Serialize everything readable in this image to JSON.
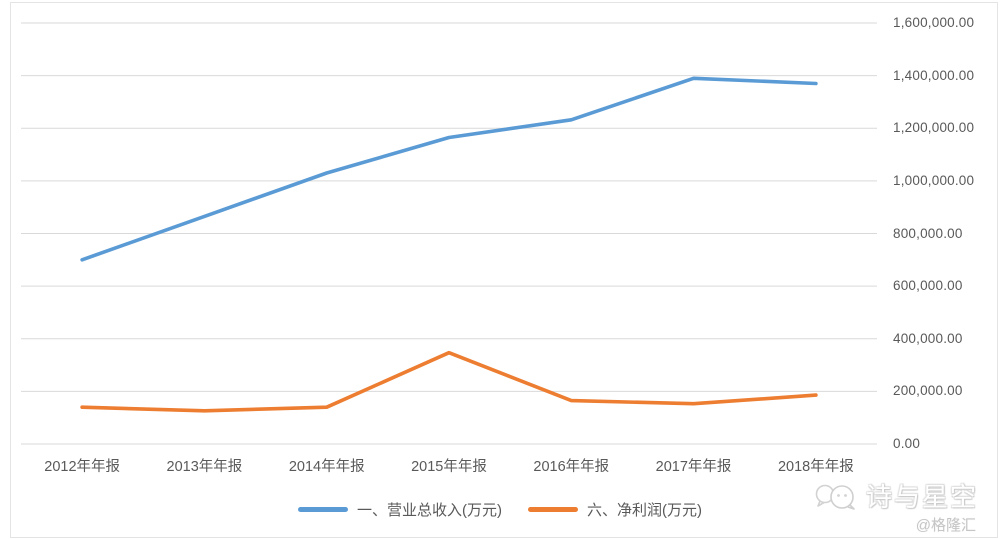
{
  "chart_data": {
    "type": "line",
    "title": "",
    "categories": [
      "2012年年报",
      "2013年年报",
      "2014年年报",
      "2015年年报",
      "2016年年报",
      "2017年年报",
      "2018年年报"
    ],
    "series": [
      {
        "name": "一、营业总收入(万元)",
        "color": "#5B9BD5",
        "values": [
          700000,
          865000,
          1030000,
          1165000,
          1232000,
          1390000,
          1370000
        ]
      },
      {
        "name": "六、净利润(万元)",
        "color": "#ED7D31",
        "values": [
          140000,
          126000,
          140000,
          347000,
          165000,
          153000,
          186000
        ]
      }
    ],
    "y_axis": {
      "side": "right",
      "min": 0,
      "max": 1600000,
      "step": 200000,
      "tick_labels": [
        "0.00",
        "200,000.00",
        "400,000.00",
        "600,000.00",
        "800,000.00",
        "1,000,000.00",
        "1,200,000.00",
        "1,400,000.00",
        "1,600,000.00"
      ]
    },
    "grid": true,
    "legend_position": "bottom",
    "gridline_color": "#d9d9d9",
    "axis_label_color": "#595959"
  },
  "watermark": {
    "icon": "chat-bubbles-icon",
    "brand": "诗与星空",
    "credit": "@格隆汇"
  }
}
